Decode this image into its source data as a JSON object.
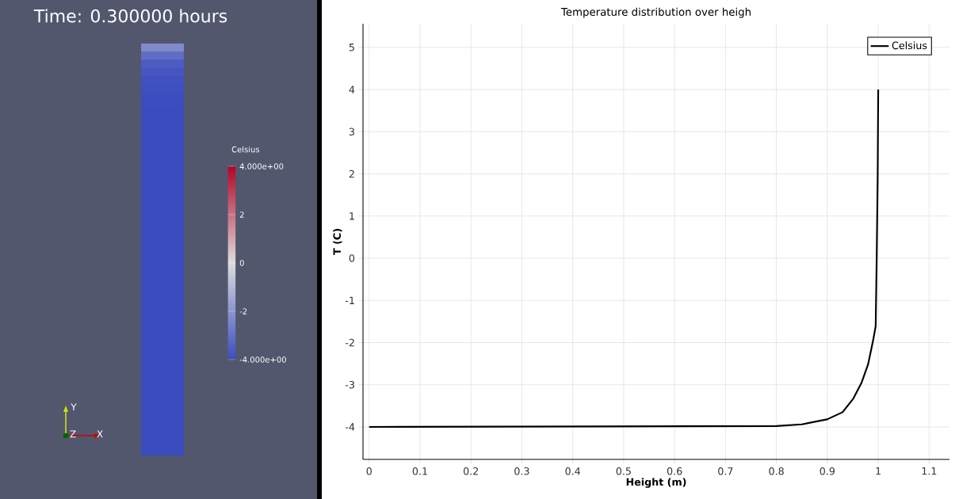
{
  "chart_data": [
    {
      "type": "heatmap",
      "title": "Time: 0.300000 hours",
      "clabel": "Celsius",
      "categories": [
        null
      ],
      "y_categories": [
        null,
        null,
        null,
        null,
        null,
        null,
        null,
        null,
        null,
        null,
        null,
        null,
        null,
        null,
        null,
        null,
        null,
        null,
        null,
        null,
        null,
        null,
        null,
        null,
        null,
        null,
        null,
        null,
        null,
        null,
        null,
        null,
        null,
        null,
        null,
        null,
        null,
        null,
        null,
        null,
        null,
        null,
        null,
        null,
        null,
        null,
        null,
        null,
        null,
        null
      ],
      "cells": [
        [
          -2.3
        ],
        [
          -3.1
        ],
        [
          -3.55
        ],
        [
          -3.75
        ],
        [
          -3.85
        ],
        [
          -3.92
        ],
        [
          -3.96
        ],
        [
          -3.98
        ],
        [
          -3.99
        ],
        [
          -4
        ],
        [
          -4
        ],
        [
          -4
        ],
        [
          -4
        ],
        [
          -4
        ],
        [
          -4
        ],
        [
          -4
        ],
        [
          -4
        ],
        [
          -4
        ],
        [
          -4
        ],
        [
          -4
        ],
        [
          -4
        ],
        [
          -4
        ],
        [
          -4
        ],
        [
          -4
        ],
        [
          -4
        ],
        [
          -4
        ],
        [
          -4
        ],
        [
          -4
        ],
        [
          -4
        ],
        [
          -4
        ],
        [
          -4
        ],
        [
          -4
        ],
        [
          -4
        ],
        [
          -4
        ],
        [
          -4
        ],
        [
          -4
        ],
        [
          -4
        ],
        [
          -4
        ],
        [
          -4
        ],
        [
          -4
        ],
        [
          -4
        ],
        [
          -4
        ],
        [
          -4
        ],
        [
          -4
        ],
        [
          -4
        ],
        [
          -4
        ],
        [
          -4
        ],
        [
          -4
        ],
        [
          -4
        ],
        [
          -4
        ]
      ],
      "clim": [
        -4,
        4
      ],
      "cticks": [
        {
          "value": -4,
          "label": "-4.000e+00"
        },
        -2,
        0,
        2,
        {
          "value": 4,
          "label": "4.000e+00"
        }
      ],
      "annotations": [
        "Y",
        "Z",
        "X"
      ]
    },
    {
      "type": "line",
      "title": "Temperature distribution over heigh",
      "xlabel": "Height (m)",
      "ylabel": "T (C)",
      "xlim": [
        -0.012,
        1.14
      ],
      "ylim": [
        -4.77,
        5.56
      ],
      "xticks": [
        0,
        0.1,
        0.2,
        0.3,
        0.4,
        0.5,
        0.6,
        0.7,
        0.8,
        0.9,
        1,
        1.1
      ],
      "yticks": [
        -4,
        -3,
        -2,
        -1,
        0,
        1,
        2,
        3,
        4,
        5
      ],
      "grid": true,
      "legend": "top right",
      "line_style": "solid",
      "series": [
        {
          "name": "Celsius",
          "color": "#000000",
          "x": [
            0,
            0.8,
            0.85,
            0.9,
            0.93,
            0.951,
            0.967,
            0.98,
            0.99,
            0.995,
            0.997,
            0.999,
            1.0
          ],
          "values": [
            -4,
            -3.98,
            -3.94,
            -3.82,
            -3.65,
            -3.33,
            -2.96,
            -2.52,
            -1.95,
            -1.61,
            0,
            2,
            4
          ]
        }
      ]
    }
  ]
}
